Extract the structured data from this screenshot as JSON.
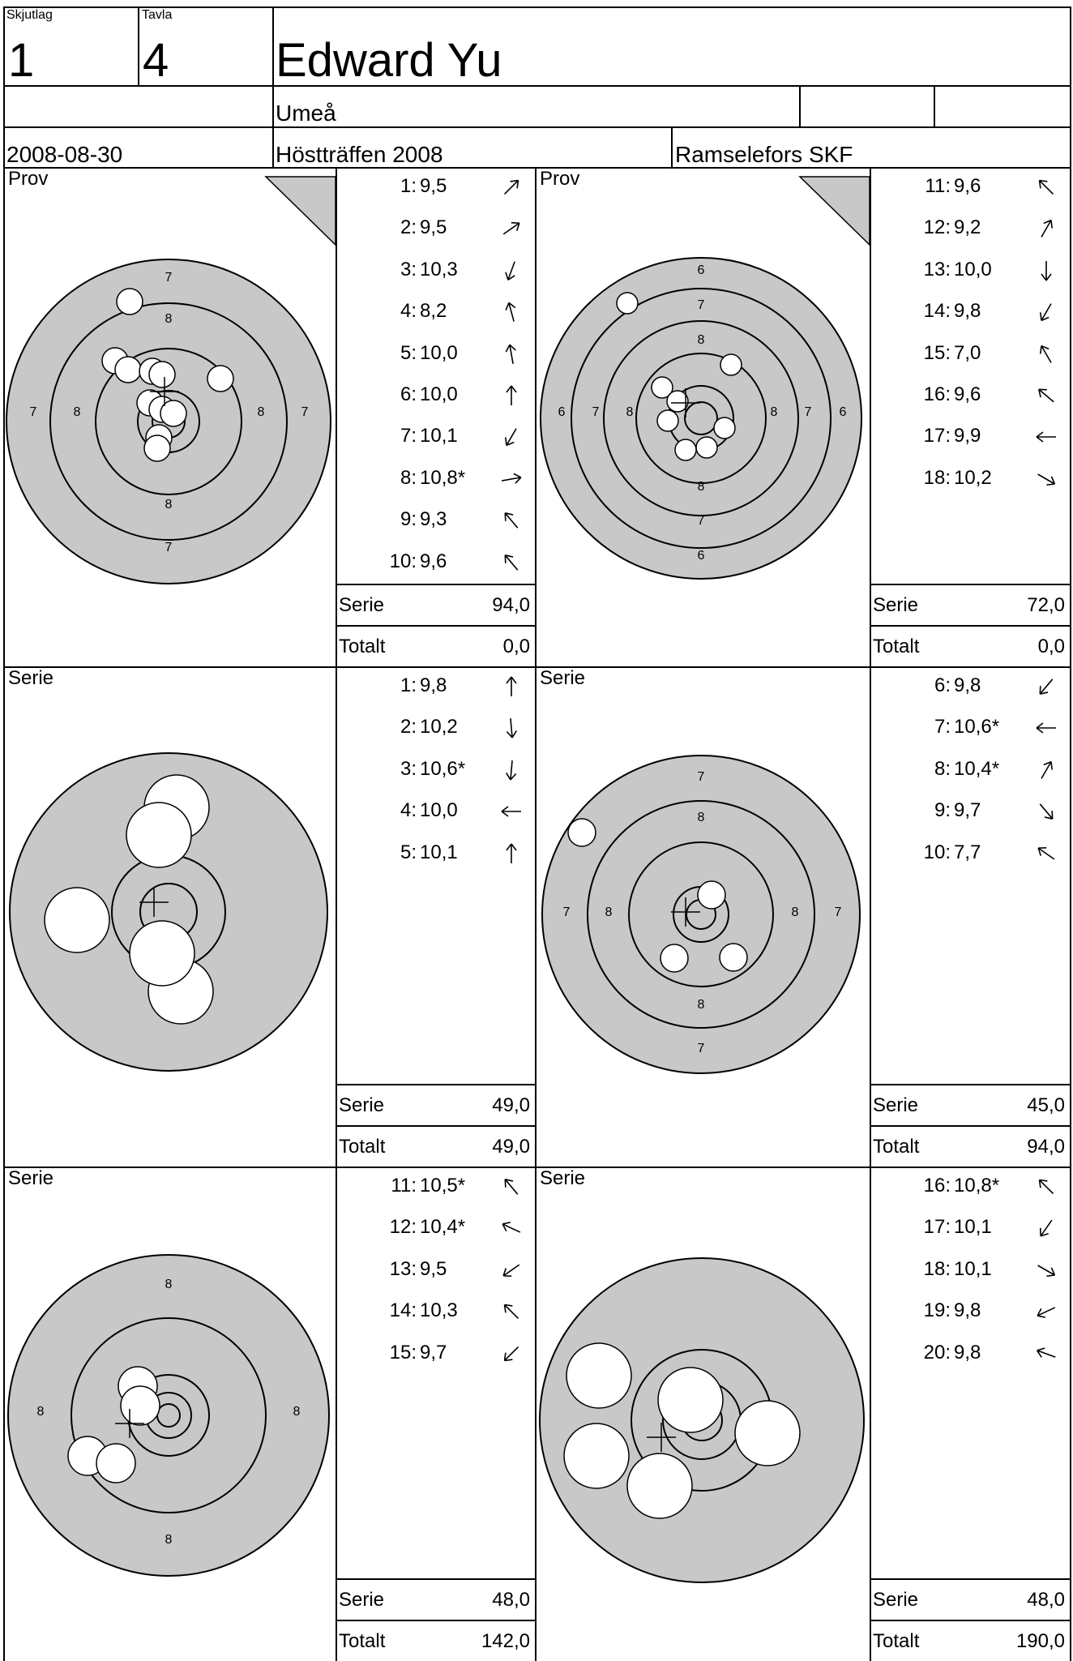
{
  "header": {
    "skjutlag_label": "Skjutlag",
    "skjutlag_value": "1",
    "tavla_label": "Tavla",
    "tavla_value": "4",
    "name": "Edward Yu",
    "club_city": "Umeå",
    "date": "2008-08-30",
    "competition": "Höstträffen 2008",
    "organizer": "Ramselefors SKF"
  },
  "colors": {
    "target_fill": "#c8c8c8",
    "ink": "#000000",
    "hole": "#ffffff"
  },
  "blocks": [
    {
      "title": "Prov",
      "shots": [
        {
          "n": "1:",
          "v": "9,5",
          "dir": 45
        },
        {
          "n": "2:",
          "v": "9,5",
          "dir": 55
        },
        {
          "n": "3:",
          "v": "10,3",
          "dir": 200
        },
        {
          "n": "4:",
          "v": "8,2",
          "dir": -15
        },
        {
          "n": "5:",
          "v": "10,0",
          "dir": -10
        },
        {
          "n": "6:",
          "v": "10,0",
          "dir": 0
        },
        {
          "n": "7:",
          "v": "10,1",
          "dir": 210
        },
        {
          "n": "8:",
          "v": "10,8*",
          "dir": 80
        },
        {
          "n": "9:",
          "v": "9,3",
          "dir": -40
        },
        {
          "n": "10:",
          "v": "9,6",
          "dir": -40
        }
      ],
      "serie_label": "Serie",
      "serie_value": "94,0",
      "totalt_label": "Totalt",
      "totalt_value": "0,0",
      "corner_mark": true,
      "ring_labels": [
        "7",
        "8"
      ]
    },
    {
      "title": "Prov",
      "shots": [
        {
          "n": "11:",
          "v": "9,6",
          "dir": -45
        },
        {
          "n": "12:",
          "v": "9,2",
          "dir": 30
        },
        {
          "n": "13:",
          "v": "10,0",
          "dir": 180
        },
        {
          "n": "14:",
          "v": "9,8",
          "dir": 210
        },
        {
          "n": "15:",
          "v": "7,0",
          "dir": -30
        },
        {
          "n": "16:",
          "v": "9,6",
          "dir": -50
        },
        {
          "n": "17:",
          "v": "9,9",
          "dir": -90
        },
        {
          "n": "18:",
          "v": "10,2",
          "dir": 120
        }
      ],
      "serie_label": "Serie",
      "serie_value": "72,0",
      "totalt_label": "Totalt",
      "totalt_value": "0,0",
      "corner_mark": true,
      "ring_labels": [
        "6",
        "7",
        "8"
      ]
    },
    {
      "title": "Serie",
      "shots": [
        {
          "n": "1:",
          "v": "9,8",
          "dir": 0
        },
        {
          "n": "2:",
          "v": "10,2",
          "dir": 175
        },
        {
          "n": "3:",
          "v": "10,6*",
          "dir": 185
        },
        {
          "n": "4:",
          "v": "10,0",
          "dir": -90
        },
        {
          "n": "5:",
          "v": "10,1",
          "dir": 0
        }
      ],
      "serie_label": "Serie",
      "serie_value": "49,0",
      "totalt_label": "Totalt",
      "totalt_value": "49,0",
      "corner_mark": false,
      "ring_labels": []
    },
    {
      "title": "Serie",
      "shots": [
        {
          "n": "6:",
          "v": "9,8",
          "dir": 220
        },
        {
          "n": "7:",
          "v": "10,6*",
          "dir": -90
        },
        {
          "n": "8:",
          "v": "10,4*",
          "dir": 30
        },
        {
          "n": "9:",
          "v": "9,7",
          "dir": 140
        },
        {
          "n": "10:",
          "v": "7,7",
          "dir": -55
        }
      ],
      "serie_label": "Serie",
      "serie_value": "45,0",
      "totalt_label": "Totalt",
      "totalt_value": "94,0",
      "corner_mark": false,
      "ring_labels": [
        "7",
        "8"
      ]
    },
    {
      "title": "Serie",
      "shots": [
        {
          "n": "11:",
          "v": "10,5*",
          "dir": -40
        },
        {
          "n": "12:",
          "v": "10,4*",
          "dir": -65
        },
        {
          "n": "13:",
          "v": "9,5",
          "dir": 235
        },
        {
          "n": "14:",
          "v": "10,3",
          "dir": -45
        },
        {
          "n": "15:",
          "v": "9,7",
          "dir": 225
        }
      ],
      "serie_label": "Serie",
      "serie_value": "48,0",
      "totalt_label": "Totalt",
      "totalt_value": "142,0",
      "corner_mark": false,
      "ring_labels": [
        "8"
      ]
    },
    {
      "title": "Serie",
      "shots": [
        {
          "n": "16:",
          "v": "10,8*",
          "dir": -45
        },
        {
          "n": "17:",
          "v": "10,1",
          "dir": 215
        },
        {
          "n": "18:",
          "v": "10,1",
          "dir": 120
        },
        {
          "n": "19:",
          "v": "9,8",
          "dir": 245
        },
        {
          "n": "20:",
          "v": "9,8",
          "dir": -70
        }
      ],
      "serie_label": "Serie",
      "serie_value": "48,0",
      "totalt_label": "Totalt",
      "totalt_value": "190,0",
      "corner_mark": false,
      "ring_labels": []
    }
  ]
}
